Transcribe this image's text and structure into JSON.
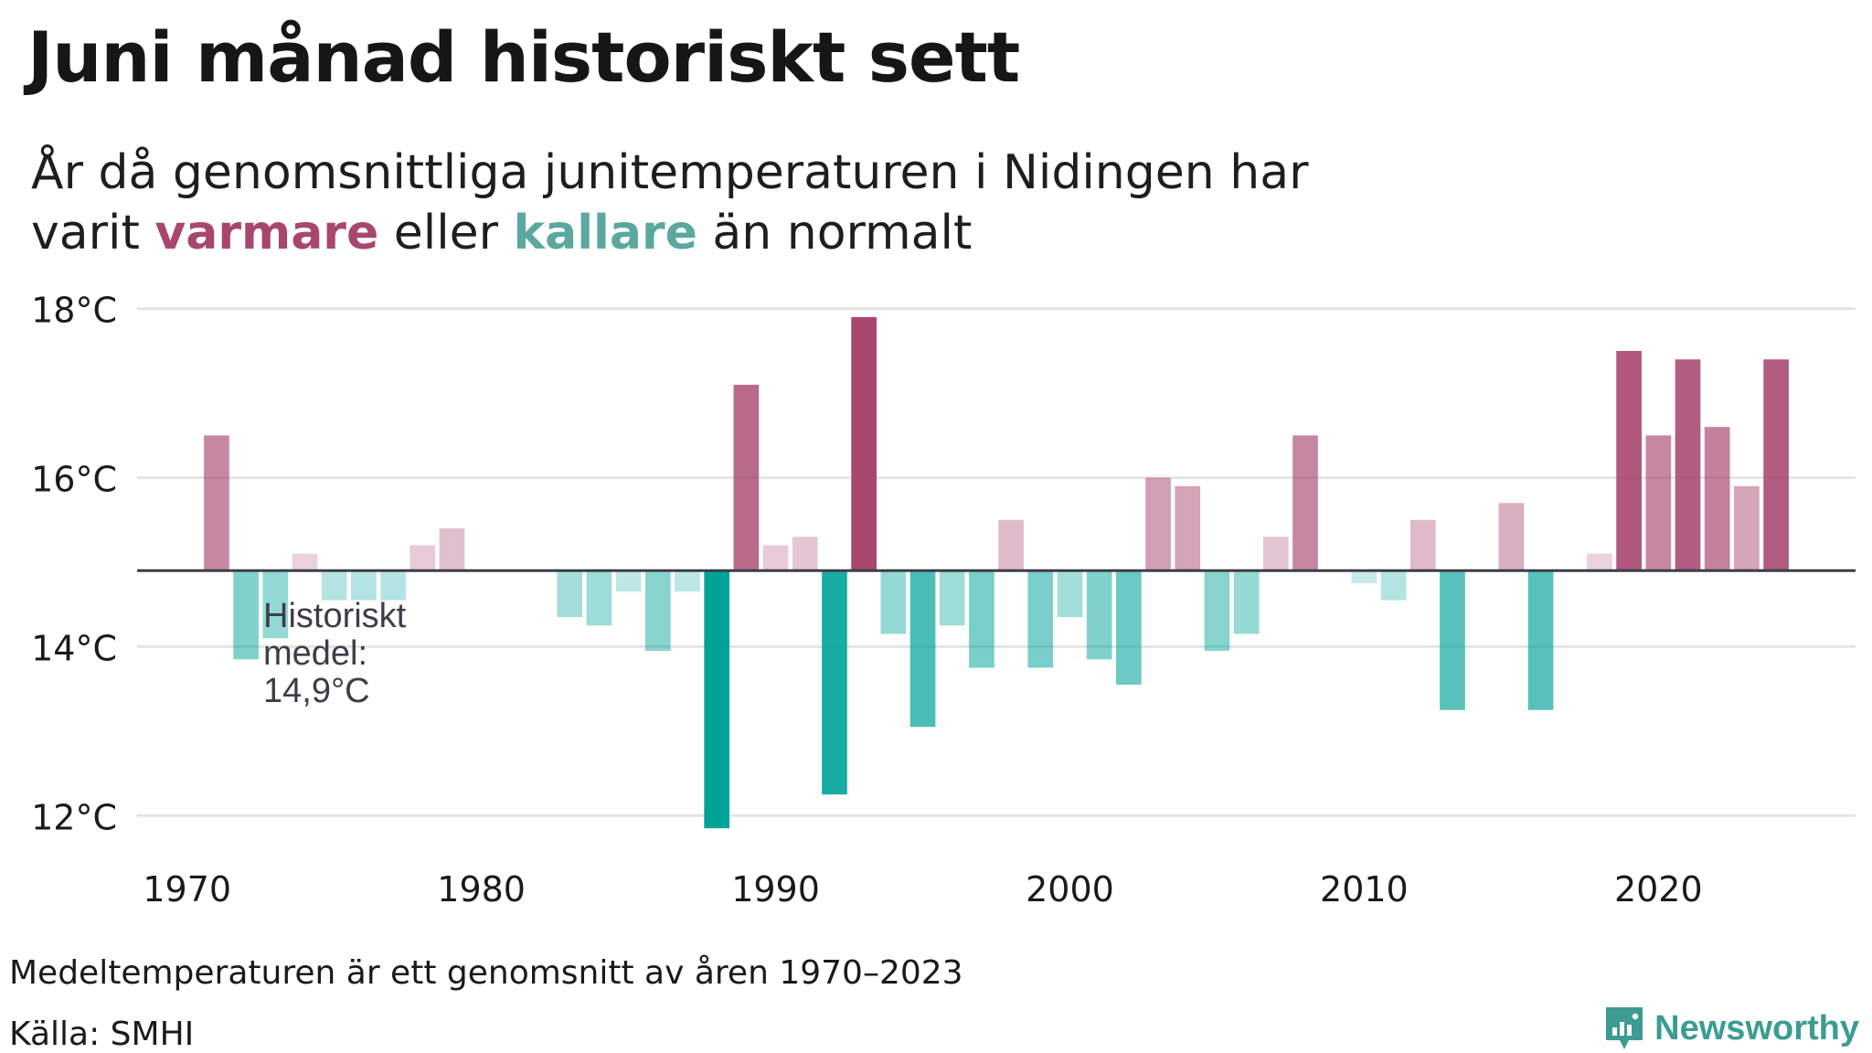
{
  "header": {
    "title": "Juni månad historiskt sett",
    "subtitle_line1": "År då genomsnittliga junitemperaturen i Nidingen har",
    "subtitle_pre": "varit",
    "subtitle_warm": "varmare",
    "subtitle_mid": "eller",
    "subtitle_cold": "kallare",
    "subtitle_post": "än normalt"
  },
  "footer": {
    "note": "Medeltemperaturen är ett genomsnitt av åren 1970–2023",
    "source": "Källa: SMHI",
    "brand": "Newsworthy"
  },
  "colors": {
    "warm": "#a8466f",
    "cold": "#00a398",
    "baseline": "#3d3d4a",
    "grid": "#e4e4e4",
    "annotation": "#3d3d4a"
  },
  "chart_data": {
    "type": "bar",
    "title": "Juni månad historiskt sett",
    "xlabel": "",
    "ylabel": "",
    "ylim": [
      11.7,
      18.3
    ],
    "xlim": [
      1968.3,
      2026.7
    ],
    "baseline": 14.9,
    "grid": true,
    "yticks": [
      {
        "value": 12,
        "label": "12°C"
      },
      {
        "value": 14,
        "label": "14°C"
      },
      {
        "value": 16,
        "label": "16°C"
      },
      {
        "value": 18,
        "label": "18°C"
      }
    ],
    "xticks": [
      {
        "value": 1970,
        "label": "1970"
      },
      {
        "value": 1980,
        "label": "1980"
      },
      {
        "value": 1990,
        "label": "1990"
      },
      {
        "value": 2000,
        "label": "2000"
      },
      {
        "value": 2010,
        "label": "2010"
      },
      {
        "value": 2020,
        "label": "2020"
      }
    ],
    "annotation": {
      "lines": [
        "Historiskt",
        "medel:",
        "14,9°C"
      ]
    },
    "years": [
      1971,
      1972,
      1973,
      1974,
      1975,
      1976,
      1977,
      1978,
      1979,
      1983,
      1984,
      1985,
      1986,
      1987,
      1988,
      1989,
      1990,
      1991,
      1992,
      1993,
      1994,
      1995,
      1996,
      1997,
      1998,
      1999,
      2000,
      2001,
      2002,
      2003,
      2004,
      2005,
      2006,
      2007,
      2008,
      2010,
      2011,
      2012,
      2013,
      2015,
      2016,
      2018,
      2019,
      2020,
      2021,
      2022,
      2023,
      2024
    ],
    "values": [
      16.5,
      13.85,
      14.1,
      15.1,
      14.55,
      14.55,
      14.55,
      15.2,
      15.4,
      14.35,
      14.25,
      14.65,
      13.95,
      14.65,
      11.85,
      17.1,
      15.2,
      15.3,
      12.25,
      17.9,
      14.15,
      13.05,
      14.25,
      13.75,
      15.5,
      13.75,
      14.35,
      13.85,
      13.55,
      16.0,
      15.9,
      13.95,
      14.15,
      15.3,
      16.5,
      14.75,
      14.55,
      15.5,
      13.25,
      15.7,
      13.25,
      15.1,
      17.5,
      16.5,
      17.4,
      16.6,
      15.9,
      17.4
    ]
  }
}
